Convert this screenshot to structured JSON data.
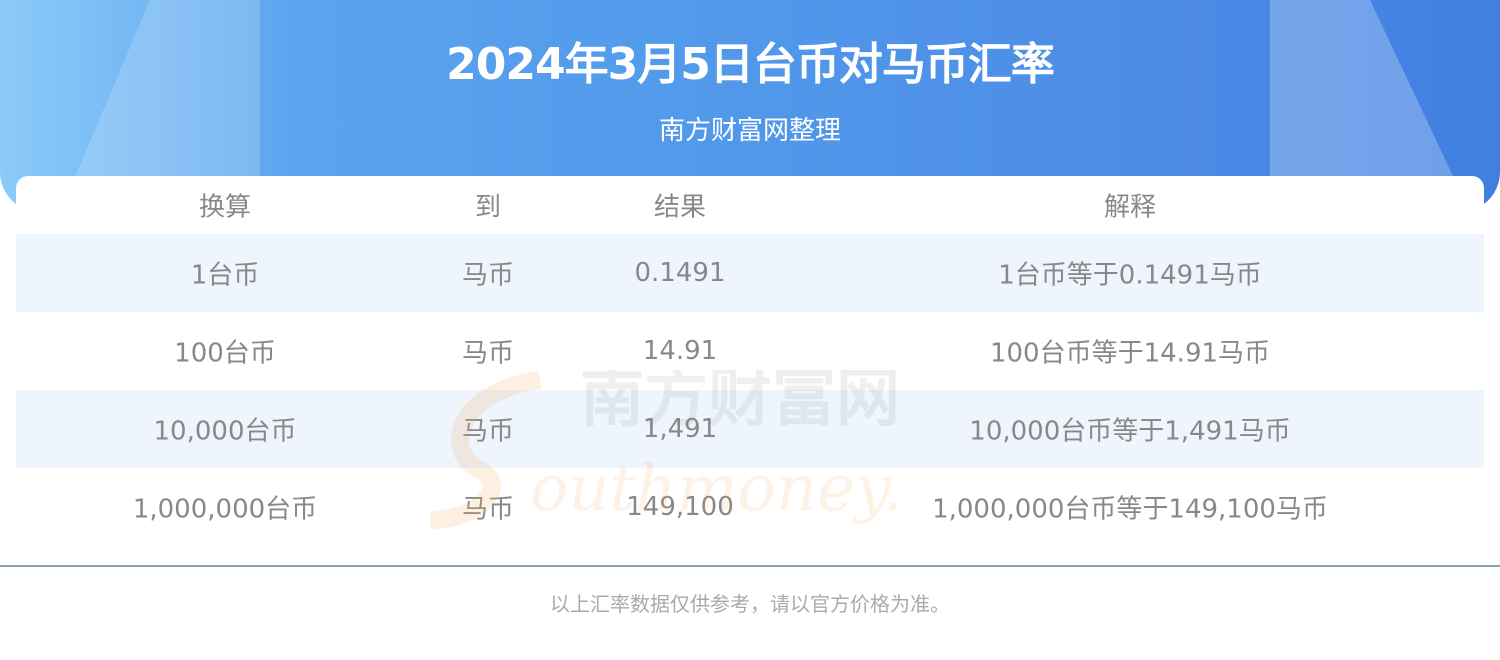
{
  "header": {
    "title": "2024年3月5日台币对马币汇率",
    "subtitle": "南方财富网整理"
  },
  "table": {
    "columns": [
      "换算",
      "到",
      "结果",
      "解释"
    ],
    "rows": [
      [
        "1台币",
        "马币",
        "0.1491",
        "1台币等于0.1491马币"
      ],
      [
        "100台币",
        "马币",
        "14.91",
        "100台币等于14.91马币"
      ],
      [
        "10,000台币",
        "马币",
        "1,491",
        "10,000台币等于1,491马币"
      ],
      [
        "1,000,000台币",
        "马币",
        "149,100",
        "1,000,000台币等于149,100马币"
      ]
    ]
  },
  "watermark": {
    "cn": "南方财富网",
    "en": "southmoney."
  },
  "footer": {
    "note": "以上汇率数据仅供参考，请以官方价格为准。"
  },
  "colors": {
    "banner": "#5198ea",
    "stripe": "#eef5fd",
    "text": "#888888",
    "divider": "#88a0b8"
  }
}
